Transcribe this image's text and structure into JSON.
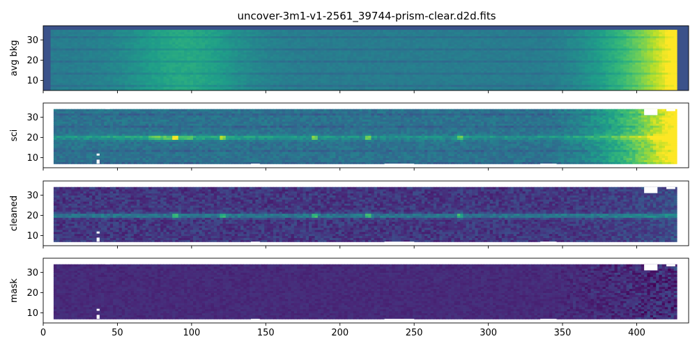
{
  "chart_data": {
    "type": "heatmap",
    "title": "uncover-3m1-v1-2561_39744-prism-clear.d2d.fits",
    "colormap": "viridis",
    "xlim": [
      0,
      435
    ],
    "ylim": [
      5,
      37
    ],
    "x_ticks": [
      "0",
      "50",
      "100",
      "150",
      "200",
      "250",
      "300",
      "350",
      "400"
    ],
    "y_ticks": [
      "10",
      "20",
      "30"
    ],
    "trace_row": 20,
    "emission_lines_x": [
      88,
      120,
      182,
      218,
      280
    ],
    "panels": [
      {
        "key": "avg",
        "ylabel": "avg bkg"
      },
      {
        "key": "sci",
        "ylabel": "sci"
      },
      {
        "key": "cleaned",
        "ylabel": "cleaned"
      },
      {
        "key": "mask",
        "ylabel": "mask"
      }
    ]
  }
}
